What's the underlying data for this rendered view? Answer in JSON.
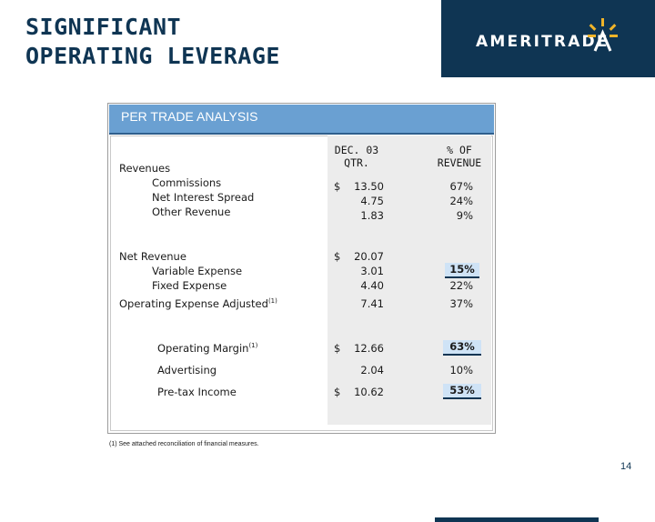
{
  "title": {
    "line1": "SIGNIFICANT",
    "line2": "OPERATING LEVERAGE"
  },
  "logo": {
    "text": "AMERITRADE",
    "icon": "ameritrade-starburst-icon"
  },
  "panel": {
    "title": "PER TRADE ANALYSIS",
    "col1_header_line1": "DEC. 03",
    "col1_header_line2": "QTR.",
    "col2_header_line1": "% OF",
    "col2_header_line2": "REVENUE"
  },
  "rows": {
    "revenues": "Revenues",
    "commissions": {
      "label": "Commissions",
      "dollar": "$",
      "value": "13.50",
      "pct": "67%"
    },
    "net_interest_spread": {
      "label": "Net Interest Spread",
      "value": "4.75",
      "pct": "24%"
    },
    "other_revenue": {
      "label": "Other Revenue",
      "value": "1.83",
      "pct": "9%"
    },
    "net_revenue": {
      "label": "Net Revenue",
      "dollar": "$",
      "value": "20.07"
    },
    "variable_expense": {
      "label": "Variable Expense",
      "value": "3.01",
      "pct": "15%"
    },
    "fixed_expense": {
      "label": "Fixed Expense",
      "value": "4.40",
      "pct": "22%"
    },
    "opex_adjusted": {
      "label": "Operating Expense Adjusted",
      "sup": "(1)",
      "value": "7.41",
      "pct": "37%"
    },
    "operating_margin": {
      "label": "Operating Margin",
      "sup": "(1)",
      "dollar": "$",
      "value": "12.66",
      "pct": "63%"
    },
    "advertising": {
      "label": "Advertising",
      "value": "2.04",
      "pct": "10%"
    },
    "pretax_income": {
      "label": "Pre-tax Income",
      "dollar": "$",
      "value": "10.62",
      "pct": "53%"
    }
  },
  "footnote": "(1) See attached reconciliation of financial measures.",
  "page_number": "14",
  "colors": {
    "navy": "#0f3553",
    "header_blue": "#6aa0d2",
    "highlight": "#cfe3f6"
  }
}
